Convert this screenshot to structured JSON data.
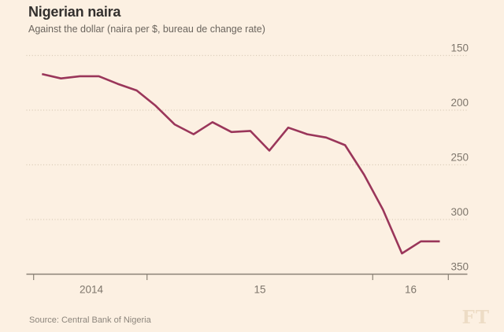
{
  "header": {
    "title": "Nigerian naira",
    "subtitle": "Against the dollar (naira per $, bureau de change rate)"
  },
  "footer": {
    "source": "Source: Central Bank of Nigeria",
    "logo": "FT"
  },
  "colors": {
    "background": "#FCF0E2",
    "line": "#9A365A",
    "grid": "#D6C9B5",
    "axis": "#8A8276",
    "axis_text": "#7E766C",
    "title_text": "#33302E",
    "subtitle_text": "#6B655E",
    "source_text": "#8C857C",
    "logo_text": "#EDDCC5"
  },
  "chart_data": {
    "type": "line",
    "title": "Nigerian naira",
    "subtitle": "Against the dollar (naira per $, bureau de change rate)",
    "source": "Source: Central Bank of Nigeria",
    "legend": "none",
    "grid": "horizontal-dotted",
    "y_axis_side": "right",
    "y_axis_inverted": true,
    "ylim": [
      150,
      350
    ],
    "y_ticks": [
      150,
      200,
      250,
      300,
      350
    ],
    "x_tick_labels": [
      "2014",
      "15",
      "16"
    ],
    "series": [
      {
        "name": "Naira per US dollar (bureau de change rate)",
        "x": [
          "Feb 2014",
          "Apr 2014",
          "Jun 2014",
          "Aug 2014",
          "Oct 2014",
          "Dec 2014",
          "Jan 2015",
          "Feb 2015",
          "Mar 2015",
          "Apr 2015",
          "May 2015",
          "Jun 2015",
          "Jul 2015",
          "Aug 2015",
          "Sep 2015",
          "Oct 2015",
          "Nov 2015",
          "Dec 2015",
          "Jan 2016",
          "Feb 2016",
          "Mar 2016",
          "Apr 2016"
        ],
        "values": [
          167,
          171,
          169,
          169,
          176,
          182,
          196,
          213,
          222,
          211,
          220,
          219,
          237,
          216,
          222,
          225,
          232,
          259,
          291,
          331,
          320,
          320
        ]
      }
    ]
  }
}
